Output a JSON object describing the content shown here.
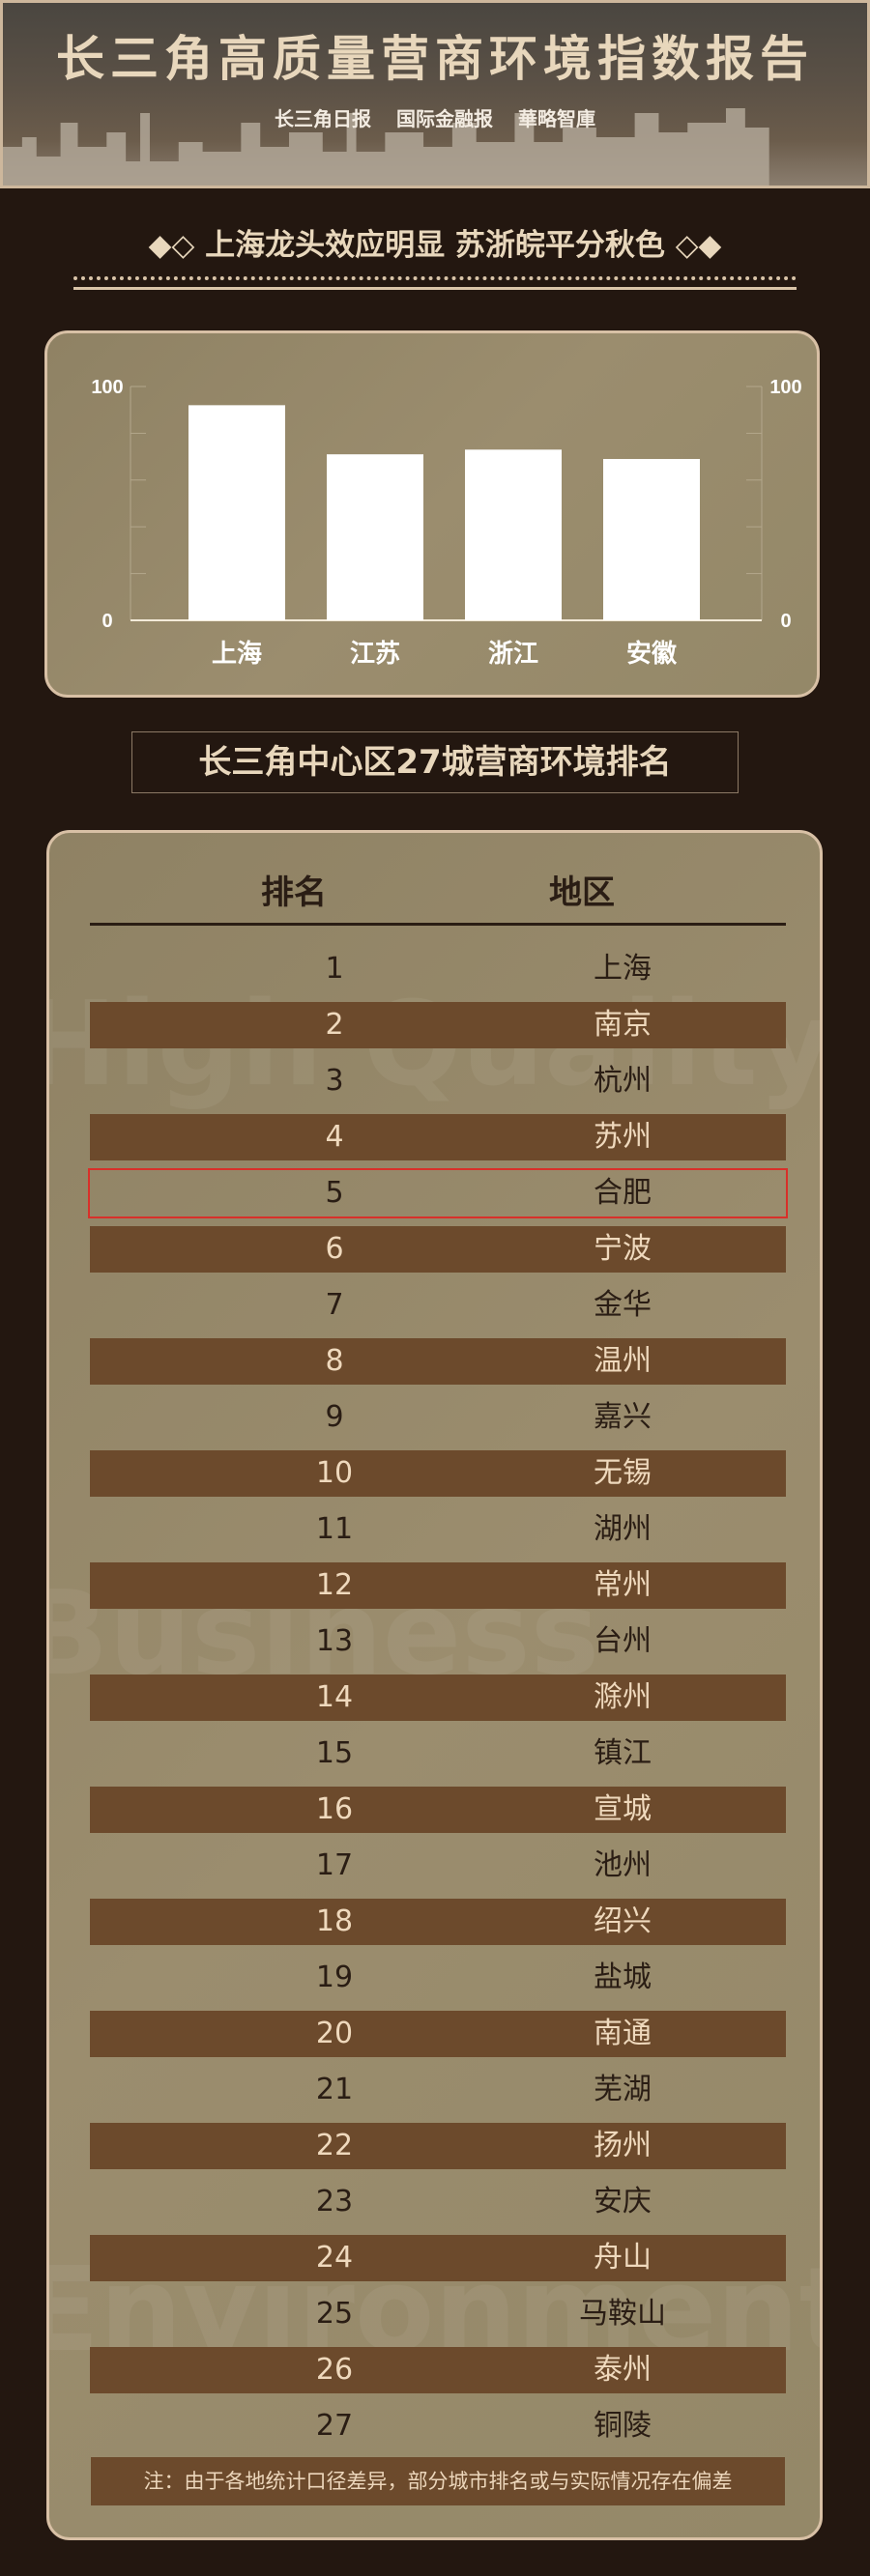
{
  "header": {
    "title": "长三角高质量营商环境指数报告",
    "logos": [
      "长三角日报",
      "国际金融报",
      "華略智庫"
    ]
  },
  "subtitle": {
    "text": "上海龙头效应明显 苏浙皖平分秋色",
    "left_ornament": "◆◇",
    "right_ornament": "◇◆"
  },
  "chart_data": {
    "type": "bar",
    "categories": [
      "上海",
      "江苏",
      "浙江",
      "安徽"
    ],
    "values": [
      92,
      71,
      73,
      69
    ],
    "ylim": [
      0,
      100
    ],
    "yticks": [
      "0",
      "100"
    ],
    "y2ticks": [
      "0",
      "100"
    ],
    "grid": false,
    "bar_color": "#ffffff"
  },
  "ranking": {
    "title": "长三角中心区27城营商环境排名",
    "columns": [
      "排名",
      "地区"
    ],
    "highlight_rank": 5,
    "highlight_color": "#d8302a",
    "rows": [
      [
        "1",
        "上海"
      ],
      [
        "2",
        "南京"
      ],
      [
        "3",
        "杭州"
      ],
      [
        "4",
        "苏州"
      ],
      [
        "5",
        "合肥"
      ],
      [
        "6",
        "宁波"
      ],
      [
        "7",
        "金华"
      ],
      [
        "8",
        "温州"
      ],
      [
        "9",
        "嘉兴"
      ],
      [
        "10",
        "无锡"
      ],
      [
        "11",
        "湖州"
      ],
      [
        "12",
        "常州"
      ],
      [
        "13",
        "台州"
      ],
      [
        "14",
        "滁州"
      ],
      [
        "15",
        "镇江"
      ],
      [
        "16",
        "宣城"
      ],
      [
        "17",
        "池州"
      ],
      [
        "18",
        "绍兴"
      ],
      [
        "19",
        "盐城"
      ],
      [
        "20",
        "南通"
      ],
      [
        "21",
        "芜湖"
      ],
      [
        "22",
        "扬州"
      ],
      [
        "23",
        "安庆"
      ],
      [
        "24",
        "舟山"
      ],
      [
        "25",
        "马鞍山"
      ],
      [
        "26",
        "泰州"
      ],
      [
        "27",
        "铜陵"
      ]
    ],
    "note": "注：由于各地统计口径差异，部分城市排名或与实际情况存在偏差",
    "watermarks": [
      "High Quality",
      "Business",
      "Environment"
    ]
  }
}
